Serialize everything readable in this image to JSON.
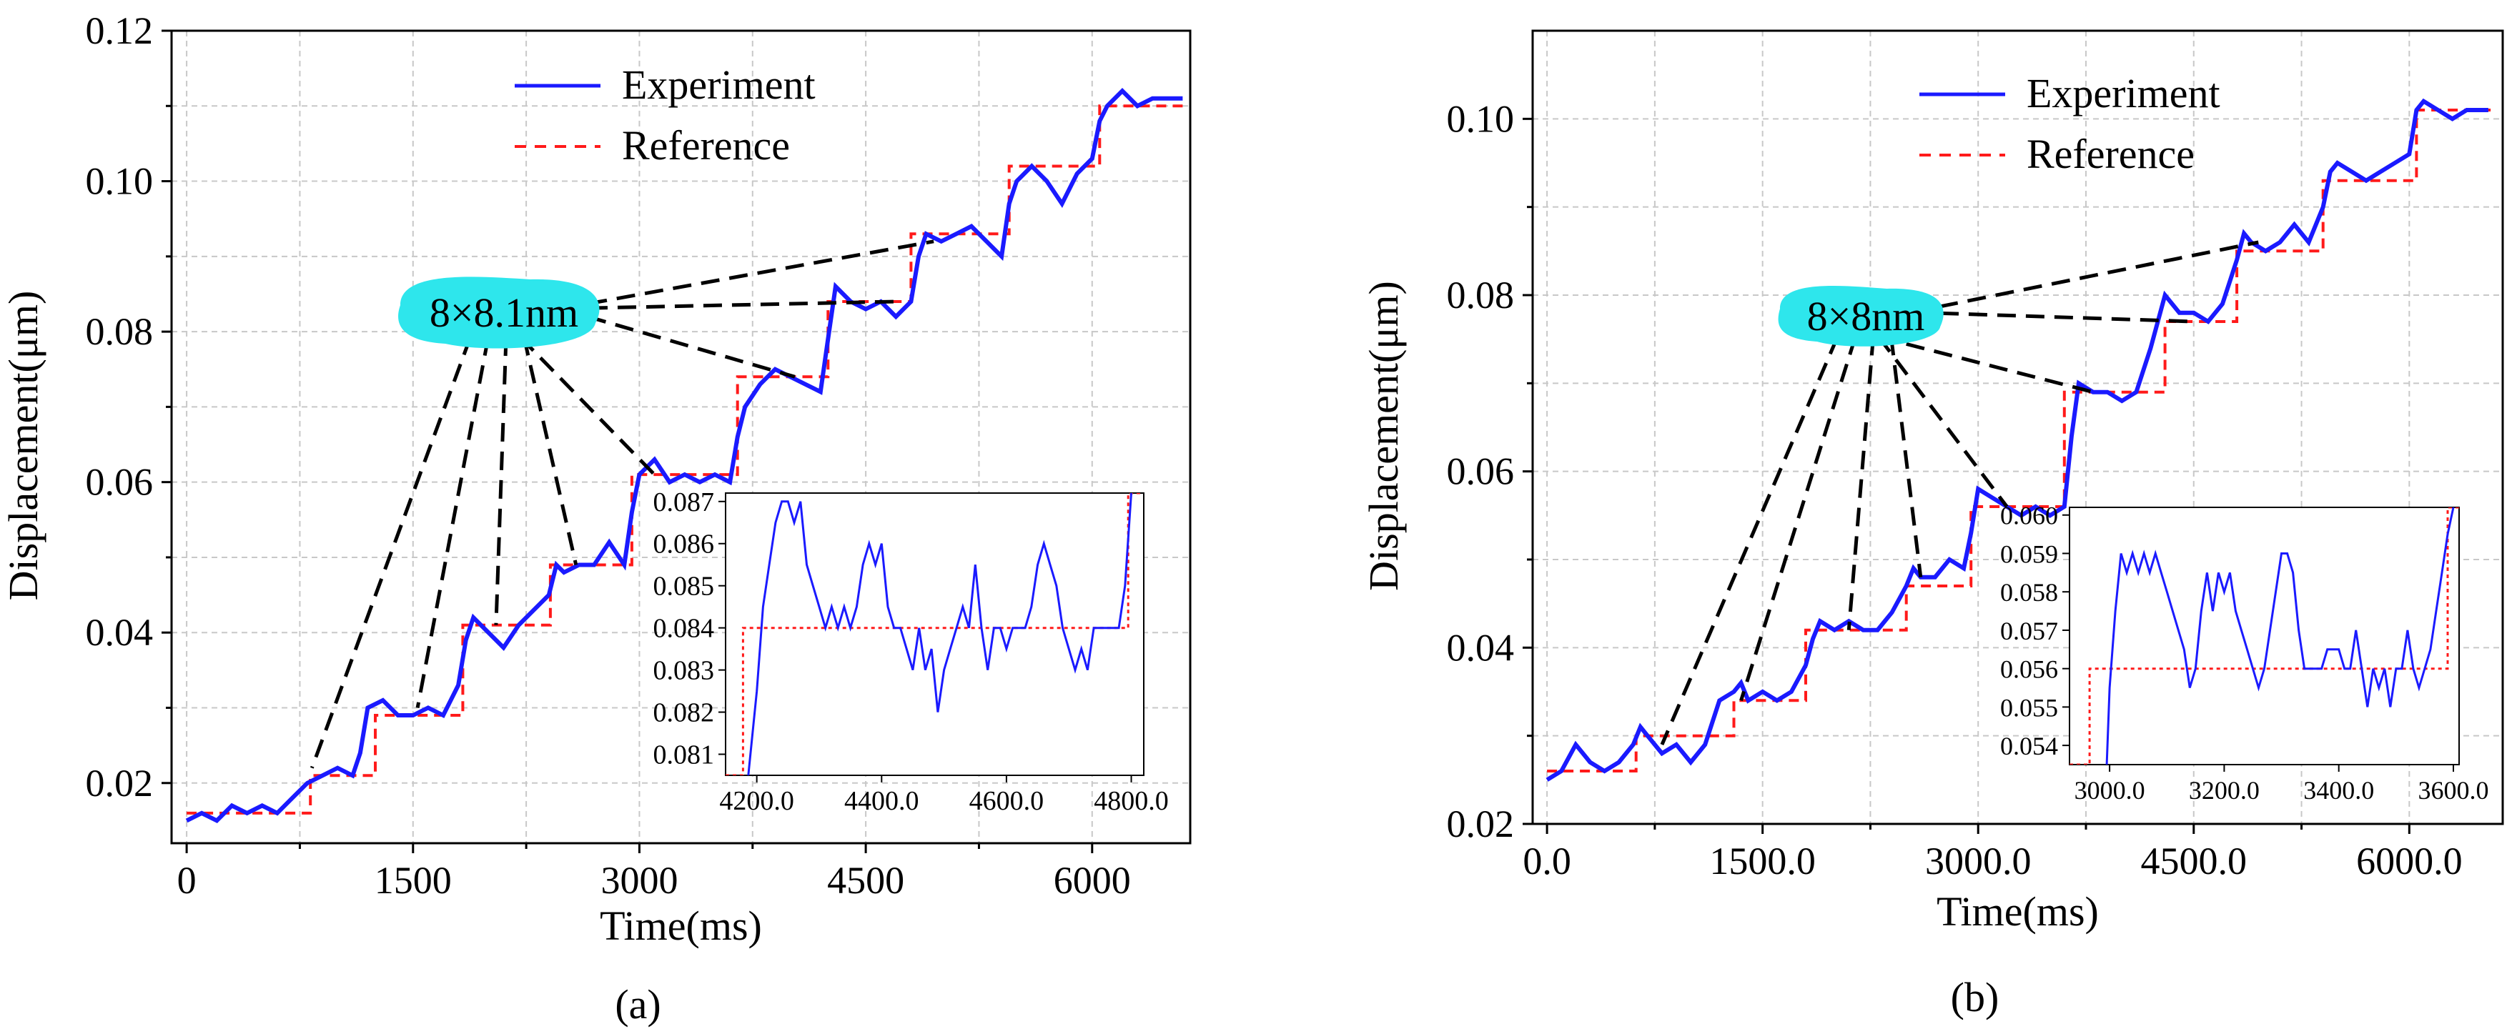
{
  "figure": {
    "colors": {
      "experiment": "#1a1aff",
      "reference": "#ff1a1a",
      "annotation_fill": "#2ee6ec",
      "grid": "#c8c8c8",
      "axis": "#000000",
      "guide": "#000000"
    }
  },
  "chart_data": [
    {
      "type": "line",
      "title": "",
      "caption": "(a)",
      "xlabel": "Time(ms)",
      "ylabel": "Displacement(μm)",
      "xlim": [
        -100,
        6650
      ],
      "ylim": [
        0.012,
        0.12
      ],
      "xticks": [
        0,
        1500,
        3000,
        4500,
        6000
      ],
      "xtick_labels": [
        "0",
        "1500",
        "3000",
        "4500",
        "6000"
      ],
      "yticks": [
        0.02,
        0.04,
        0.06,
        0.08,
        0.1,
        0.12
      ],
      "ytick_labels": [
        "0.02",
        "0.04",
        "0.06",
        "0.08",
        "0.10",
        "0.12"
      ],
      "grid": true,
      "legend_position": "top-center",
      "legend": [
        "Experiment",
        "Reference"
      ],
      "annotation": {
        "label": "8×8.1nm",
        "anchor": [
          2450,
          0.084
        ],
        "targets": [
          [
            830,
            0.022
          ],
          [
            1530,
            0.03
          ],
          [
            2050,
            0.041
          ],
          [
            2580,
            0.049
          ],
          [
            3100,
            0.061
          ],
          [
            4030,
            0.074
          ],
          [
            4700,
            0.084
          ],
          [
            4950,
            0.092
          ]
        ]
      },
      "series": [
        {
          "name": "Reference",
          "style": "dashed",
          "x": [
            0,
            820,
            820,
            1250,
            1250,
            1830,
            1830,
            2410,
            2410,
            2950,
            2950,
            3650,
            3650,
            4250,
            4250,
            4800,
            4800,
            5450,
            5450,
            6050,
            6050,
            6600
          ],
          "y": [
            0.016,
            0.016,
            0.021,
            0.021,
            0.029,
            0.029,
            0.041,
            0.041,
            0.049,
            0.049,
            0.061,
            0.061,
            0.074,
            0.074,
            0.084,
            0.084,
            0.093,
            0.093,
            0.102,
            0.102,
            0.11,
            0.11
          ]
        },
        {
          "name": "Experiment",
          "style": "solid",
          "x": [
            0,
            100,
            200,
            300,
            400,
            500,
            600,
            700,
            800,
            900,
            1000,
            1100,
            1150,
            1200,
            1300,
            1400,
            1500,
            1600,
            1700,
            1800,
            1850,
            1900,
            2000,
            2100,
            2200,
            2300,
            2400,
            2450,
            2500,
            2600,
            2700,
            2800,
            2900,
            2950,
            3000,
            3100,
            3200,
            3300,
            3400,
            3500,
            3600,
            3650,
            3700,
            3800,
            3900,
            4000,
            4100,
            4200,
            4250,
            4300,
            4400,
            4500,
            4600,
            4700,
            4800,
            4850,
            4900,
            5000,
            5100,
            5200,
            5300,
            5400,
            5450,
            5500,
            5600,
            5700,
            5800,
            5900,
            6000,
            6050,
            6100,
            6200,
            6300,
            6400,
            6500,
            6600
          ],
          "y": [
            0.015,
            0.016,
            0.015,
            0.017,
            0.016,
            0.017,
            0.016,
            0.018,
            0.02,
            0.021,
            0.022,
            0.021,
            0.024,
            0.03,
            0.031,
            0.029,
            0.029,
            0.03,
            0.029,
            0.033,
            0.039,
            0.042,
            0.04,
            0.038,
            0.041,
            0.043,
            0.045,
            0.049,
            0.048,
            0.049,
            0.049,
            0.052,
            0.049,
            0.056,
            0.061,
            0.063,
            0.06,
            0.061,
            0.06,
            0.061,
            0.06,
            0.066,
            0.07,
            0.073,
            0.075,
            0.074,
            0.073,
            0.072,
            0.079,
            0.086,
            0.084,
            0.083,
            0.084,
            0.082,
            0.084,
            0.09,
            0.093,
            0.092,
            0.093,
            0.094,
            0.092,
            0.09,
            0.097,
            0.1,
            0.102,
            0.1,
            0.097,
            0.101,
            0.103,
            0.108,
            0.11,
            0.112,
            0.11,
            0.111,
            0.111,
            0.111
          ]
        }
      ],
      "inset": {
        "xlim": [
          4150,
          4820
        ],
        "ylim": [
          0.0805,
          0.0872
        ],
        "xticks": [
          4200,
          4400,
          4600,
          4800
        ],
        "xtick_labels": [
          "4200.0",
          "4400.0",
          "4600.0",
          "4800.0"
        ],
        "yticks": [
          0.081,
          0.082,
          0.083,
          0.084,
          0.085,
          0.086,
          0.087
        ],
        "ytick_labels": [
          "0.081",
          "0.082",
          "0.083",
          "0.084",
          "0.085",
          "0.086",
          "0.087"
        ],
        "series": [
          {
            "name": "Reference",
            "style": "dashed",
            "x": [
              4150,
              4178,
              4178,
              4795,
              4795,
              4820
            ],
            "y": [
              0.0805,
              0.0805,
              0.084,
              0.084,
              0.0872,
              0.0872
            ]
          },
          {
            "name": "Experiment",
            "style": "solid",
            "x": [
              4185,
              4200,
              4210,
              4220,
              4230,
              4240,
              4250,
              4260,
              4270,
              4280,
              4290,
              4300,
              4310,
              4320,
              4330,
              4340,
              4350,
              4360,
              4370,
              4380,
              4390,
              4400,
              4410,
              4420,
              4430,
              4440,
              4450,
              4460,
              4470,
              4480,
              4490,
              4500,
              4510,
              4520,
              4530,
              4540,
              4550,
              4560,
              4570,
              4580,
              4590,
              4600,
              4610,
              4620,
              4630,
              4640,
              4650,
              4660,
              4670,
              4680,
              4690,
              4700,
              4710,
              4720,
              4730,
              4740,
              4750,
              4760,
              4770,
              4780,
              4790,
              4800
            ],
            "y": [
              0.0803,
              0.0825,
              0.0845,
              0.0855,
              0.0865,
              0.087,
              0.087,
              0.0865,
              0.087,
              0.0855,
              0.085,
              0.0845,
              0.084,
              0.0845,
              0.084,
              0.0845,
              0.084,
              0.0845,
              0.0855,
              0.086,
              0.0855,
              0.086,
              0.0845,
              0.084,
              0.084,
              0.0835,
              0.083,
              0.084,
              0.083,
              0.0835,
              0.082,
              0.083,
              0.0835,
              0.084,
              0.0845,
              0.084,
              0.0855,
              0.084,
              0.083,
              0.084,
              0.084,
              0.0835,
              0.084,
              0.084,
              0.084,
              0.0845,
              0.0855,
              0.086,
              0.0855,
              0.085,
              0.084,
              0.0835,
              0.083,
              0.0835,
              0.083,
              0.084,
              0.084,
              0.084,
              0.084,
              0.084,
              0.085,
              0.0872
            ]
          }
        ]
      }
    },
    {
      "type": "line",
      "title": "",
      "caption": "(b)",
      "xlabel": "Time(ms)",
      "ylabel": "Displacement(μm)",
      "xlim": [
        -100,
        6650
      ],
      "ylim": [
        0.02,
        0.11
      ],
      "xticks": [
        0,
        1500,
        3000,
        4500,
        6000
      ],
      "xtick_labels": [
        "0.0",
        "1500.0",
        "3000.0",
        "4500.0",
        "6000.0"
      ],
      "yticks": [
        0.02,
        0.04,
        0.06,
        0.08,
        0.1
      ],
      "ytick_labels": [
        "0.02",
        "0.04",
        "0.06",
        "0.08",
        "0.10"
      ],
      "grid": true,
      "legend_position": "top-center",
      "legend": [
        "Experiment",
        "Reference"
      ],
      "annotation": {
        "label": "8×8nm",
        "anchor": [
          2400,
          0.08
        ],
        "targets": [
          [
            800,
            0.029
          ],
          [
            1350,
            0.034
          ],
          [
            2100,
            0.042
          ],
          [
            2600,
            0.048
          ],
          [
            3200,
            0.056
          ],
          [
            3800,
            0.069
          ],
          [
            4500,
            0.077
          ],
          [
            4950,
            0.086
          ]
        ]
      },
      "series": [
        {
          "name": "Reference",
          "style": "dashed",
          "x": [
            0,
            620,
            620,
            1300,
            1300,
            1800,
            1800,
            2500,
            2500,
            2950,
            2950,
            3600,
            3600,
            4300,
            4300,
            4800,
            4800,
            5400,
            5400,
            6050,
            6050,
            6600
          ],
          "y": [
            0.026,
            0.026,
            0.03,
            0.03,
            0.034,
            0.034,
            0.042,
            0.042,
            0.047,
            0.047,
            0.056,
            0.056,
            0.069,
            0.069,
            0.077,
            0.077,
            0.085,
            0.085,
            0.093,
            0.093,
            0.101,
            0.101
          ]
        },
        {
          "name": "Experiment",
          "style": "solid",
          "x": [
            0,
            100,
            200,
            300,
            400,
            500,
            600,
            650,
            700,
            800,
            900,
            1000,
            1100,
            1200,
            1300,
            1350,
            1400,
            1500,
            1600,
            1700,
            1800,
            1850,
            1900,
            2000,
            2100,
            2200,
            2300,
            2400,
            2500,
            2550,
            2600,
            2700,
            2800,
            2900,
            2950,
            3000,
            3100,
            3200,
            3300,
            3400,
            3500,
            3600,
            3650,
            3700,
            3800,
            3900,
            4000,
            4100,
            4200,
            4300,
            4350,
            4400,
            4500,
            4600,
            4700,
            4800,
            4850,
            4900,
            5000,
            5100,
            5200,
            5300,
            5400,
            5450,
            5500,
            5600,
            5700,
            5800,
            5900,
            6000,
            6050,
            6100,
            6200,
            6300,
            6400,
            6500,
            6550
          ],
          "y": [
            0.025,
            0.026,
            0.029,
            0.027,
            0.026,
            0.027,
            0.029,
            0.031,
            0.03,
            0.028,
            0.029,
            0.027,
            0.029,
            0.034,
            0.035,
            0.036,
            0.034,
            0.035,
            0.034,
            0.035,
            0.038,
            0.041,
            0.043,
            0.042,
            0.043,
            0.042,
            0.042,
            0.044,
            0.047,
            0.049,
            0.048,
            0.048,
            0.05,
            0.049,
            0.053,
            0.058,
            0.057,
            0.056,
            0.055,
            0.056,
            0.055,
            0.056,
            0.064,
            0.07,
            0.069,
            0.069,
            0.068,
            0.069,
            0.074,
            0.08,
            0.079,
            0.078,
            0.078,
            0.077,
            0.079,
            0.084,
            0.087,
            0.086,
            0.085,
            0.086,
            0.088,
            0.086,
            0.09,
            0.094,
            0.095,
            0.094,
            0.093,
            0.094,
            0.095,
            0.096,
            0.101,
            0.102,
            0.101,
            0.1,
            0.101,
            0.101,
            0.101
          ]
        }
      ],
      "inset": {
        "xlim": [
          2930,
          3610
        ],
        "ylim": [
          0.0535,
          0.0602
        ],
        "xticks": [
          3000,
          3200,
          3400,
          3600
        ],
        "xtick_labels": [
          "3000.0",
          "3200.0",
          "3400.0",
          "3600.0"
        ],
        "yticks": [
          0.054,
          0.055,
          0.056,
          0.057,
          0.058,
          0.059,
          0.06
        ],
        "ytick_labels": [
          "0.054",
          "0.055",
          "0.056",
          "0.057",
          "0.058",
          "0.059",
          "0.060"
        ],
        "series": [
          {
            "name": "Reference",
            "style": "dashed",
            "x": [
              2930,
              2965,
              2965,
              3590,
              3590,
              3610
            ],
            "y": [
              0.0535,
              0.0535,
              0.056,
              0.056,
              0.0602,
              0.0602
            ]
          },
          {
            "name": "Experiment",
            "style": "solid",
            "x": [
              2995,
              3000,
              3010,
              3020,
              3030,
              3040,
              3050,
              3060,
              3070,
              3080,
              3090,
              3100,
              3110,
              3120,
              3130,
              3140,
              3150,
              3160,
              3170,
              3180,
              3190,
              3200,
              3210,
              3220,
              3230,
              3240,
              3250,
              3260,
              3270,
              3280,
              3290,
              3300,
              3310,
              3320,
              3330,
              3340,
              3350,
              3360,
              3370,
              3380,
              3390,
              3400,
              3410,
              3420,
              3430,
              3440,
              3450,
              3460,
              3470,
              3480,
              3490,
              3500,
              3510,
              3520,
              3530,
              3540,
              3550,
              3560,
              3570,
              3580,
              3590,
              3600
            ],
            "y": [
              0.0535,
              0.0555,
              0.0575,
              0.059,
              0.0585,
              0.059,
              0.0585,
              0.059,
              0.0585,
              0.059,
              0.0585,
              0.058,
              0.0575,
              0.057,
              0.0565,
              0.0555,
              0.056,
              0.0575,
              0.0585,
              0.0575,
              0.0585,
              0.058,
              0.0585,
              0.0575,
              0.057,
              0.0565,
              0.056,
              0.0555,
              0.056,
              0.057,
              0.058,
              0.059,
              0.059,
              0.0585,
              0.057,
              0.056,
              0.056,
              0.056,
              0.056,
              0.0565,
              0.0565,
              0.0565,
              0.056,
              0.056,
              0.057,
              0.056,
              0.055,
              0.056,
              0.0555,
              0.056,
              0.055,
              0.056,
              0.056,
              0.057,
              0.056,
              0.0555,
              0.056,
              0.0565,
              0.0575,
              0.0585,
              0.0595,
              0.0602
            ]
          }
        ]
      }
    }
  ]
}
